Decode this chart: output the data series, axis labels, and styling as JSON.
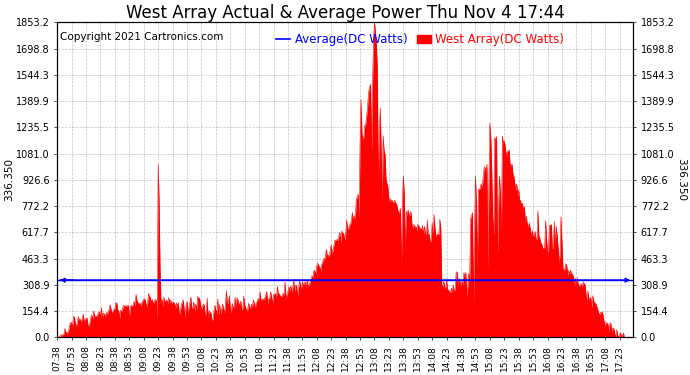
{
  "title": "West Array Actual & Average Power Thu Nov 4 17:44",
  "copyright": "Copyright 2021 Cartronics.com",
  "avg_label": "Average(DC Watts)",
  "west_label": "West Array(DC Watts)",
  "avg_color": "blue",
  "west_color": "red",
  "avg_value": 336.35,
  "y_max": 1853.2,
  "y_min": 0.0,
  "y_ticks": [
    0.0,
    154.4,
    308.9,
    463.3,
    617.7,
    772.2,
    926.6,
    1081.0,
    1235.5,
    1389.9,
    1544.3,
    1698.8,
    1853.2
  ],
  "background_color": "#ffffff",
  "grid_color": "#aaaaaa",
  "title_fontsize": 12,
  "copyright_fontsize": 7.5,
  "legend_fontsize": 8.5,
  "tick_fontsize": 6.5,
  "ytick_label_fontsize": 7,
  "left_ylabel": "336.350",
  "right_ylabel": "336.350"
}
